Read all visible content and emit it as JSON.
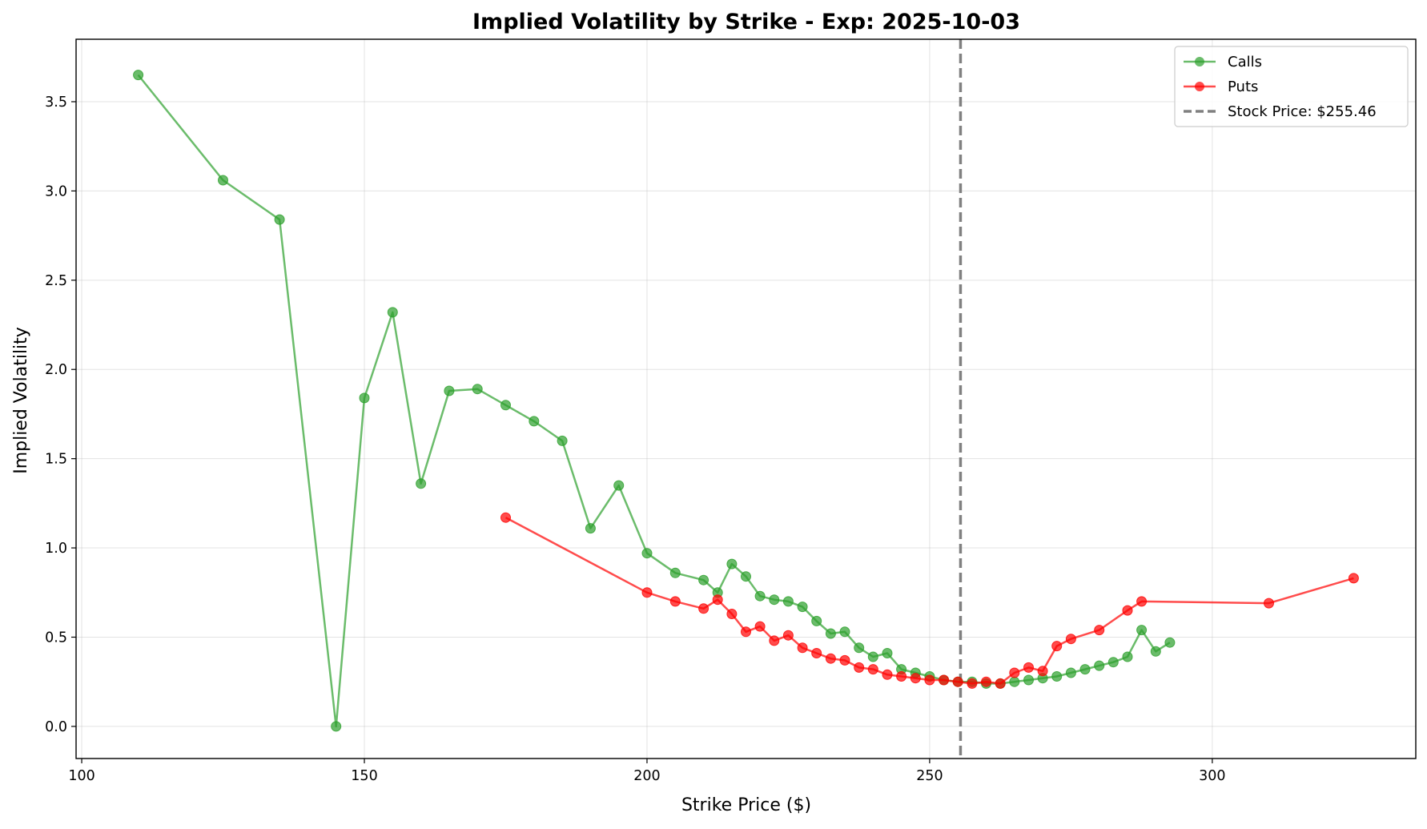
{
  "chart_data": {
    "type": "line",
    "title": "Implied Volatility by Strike - Exp: 2025-10-03",
    "xlabel": "Strike Price ($)",
    "ylabel": "Implied Volatility",
    "xlim": [
      99,
      336
    ],
    "ylim": [
      -0.18,
      3.85
    ],
    "x_ticks": [
      100,
      150,
      200,
      250,
      300
    ],
    "y_ticks": [
      0.0,
      0.5,
      1.0,
      1.5,
      2.0,
      2.5,
      3.0,
      3.5
    ],
    "grid": true,
    "legend_position": "top-right",
    "series": [
      {
        "name": "Calls",
        "color": "#2ca02c",
        "x": [
          110,
          125,
          135,
          145,
          150,
          155,
          160,
          165,
          170,
          175,
          180,
          185,
          190,
          195,
          200,
          205,
          210,
          212.5,
          215,
          217.5,
          220,
          222.5,
          225,
          227.5,
          230,
          232.5,
          235,
          237.5,
          240,
          242.5,
          245,
          247.5,
          250,
          252.5,
          255,
          257.5,
          260,
          262.5,
          265,
          267.5,
          270,
          272.5,
          275,
          277.5,
          280,
          282.5,
          285,
          287.5,
          290,
          292.5
        ],
        "y": [
          3.65,
          3.06,
          2.84,
          0.0,
          1.84,
          2.32,
          1.36,
          1.88,
          1.89,
          1.8,
          1.71,
          1.6,
          1.11,
          1.35,
          0.97,
          0.86,
          0.82,
          0.75,
          0.91,
          0.84,
          0.73,
          0.71,
          0.7,
          0.67,
          0.59,
          0.52,
          0.53,
          0.44,
          0.39,
          0.41,
          0.32,
          0.3,
          0.28,
          0.26,
          0.25,
          0.25,
          0.24,
          0.24,
          0.25,
          0.26,
          0.27,
          0.28,
          0.3,
          0.32,
          0.34,
          0.36,
          0.39,
          0.54,
          0.42,
          0.47
        ]
      },
      {
        "name": "Puts",
        "color": "#ff0000",
        "x": [
          175,
          200,
          205,
          210,
          212.5,
          215,
          217.5,
          220,
          222.5,
          225,
          227.5,
          230,
          232.5,
          235,
          237.5,
          240,
          242.5,
          245,
          247.5,
          250,
          252.5,
          255,
          257.5,
          260,
          262.5,
          265,
          267.5,
          270,
          272.5,
          275,
          280,
          285,
          287.5,
          310,
          325
        ],
        "y": [
          1.17,
          0.75,
          0.7,
          0.66,
          0.71,
          0.63,
          0.53,
          0.56,
          0.48,
          0.51,
          0.44,
          0.41,
          0.38,
          0.37,
          0.33,
          0.32,
          0.29,
          0.28,
          0.27,
          0.26,
          0.26,
          0.25,
          0.24,
          0.25,
          0.24,
          0.3,
          0.33,
          0.31,
          0.45,
          0.49,
          0.54,
          0.65,
          0.7,
          0.69,
          0.83
        ]
      }
    ],
    "reference_line": {
      "label": "Stock Price: $255.46",
      "x": 255.46,
      "color": "#808080",
      "style": "dashed"
    }
  }
}
